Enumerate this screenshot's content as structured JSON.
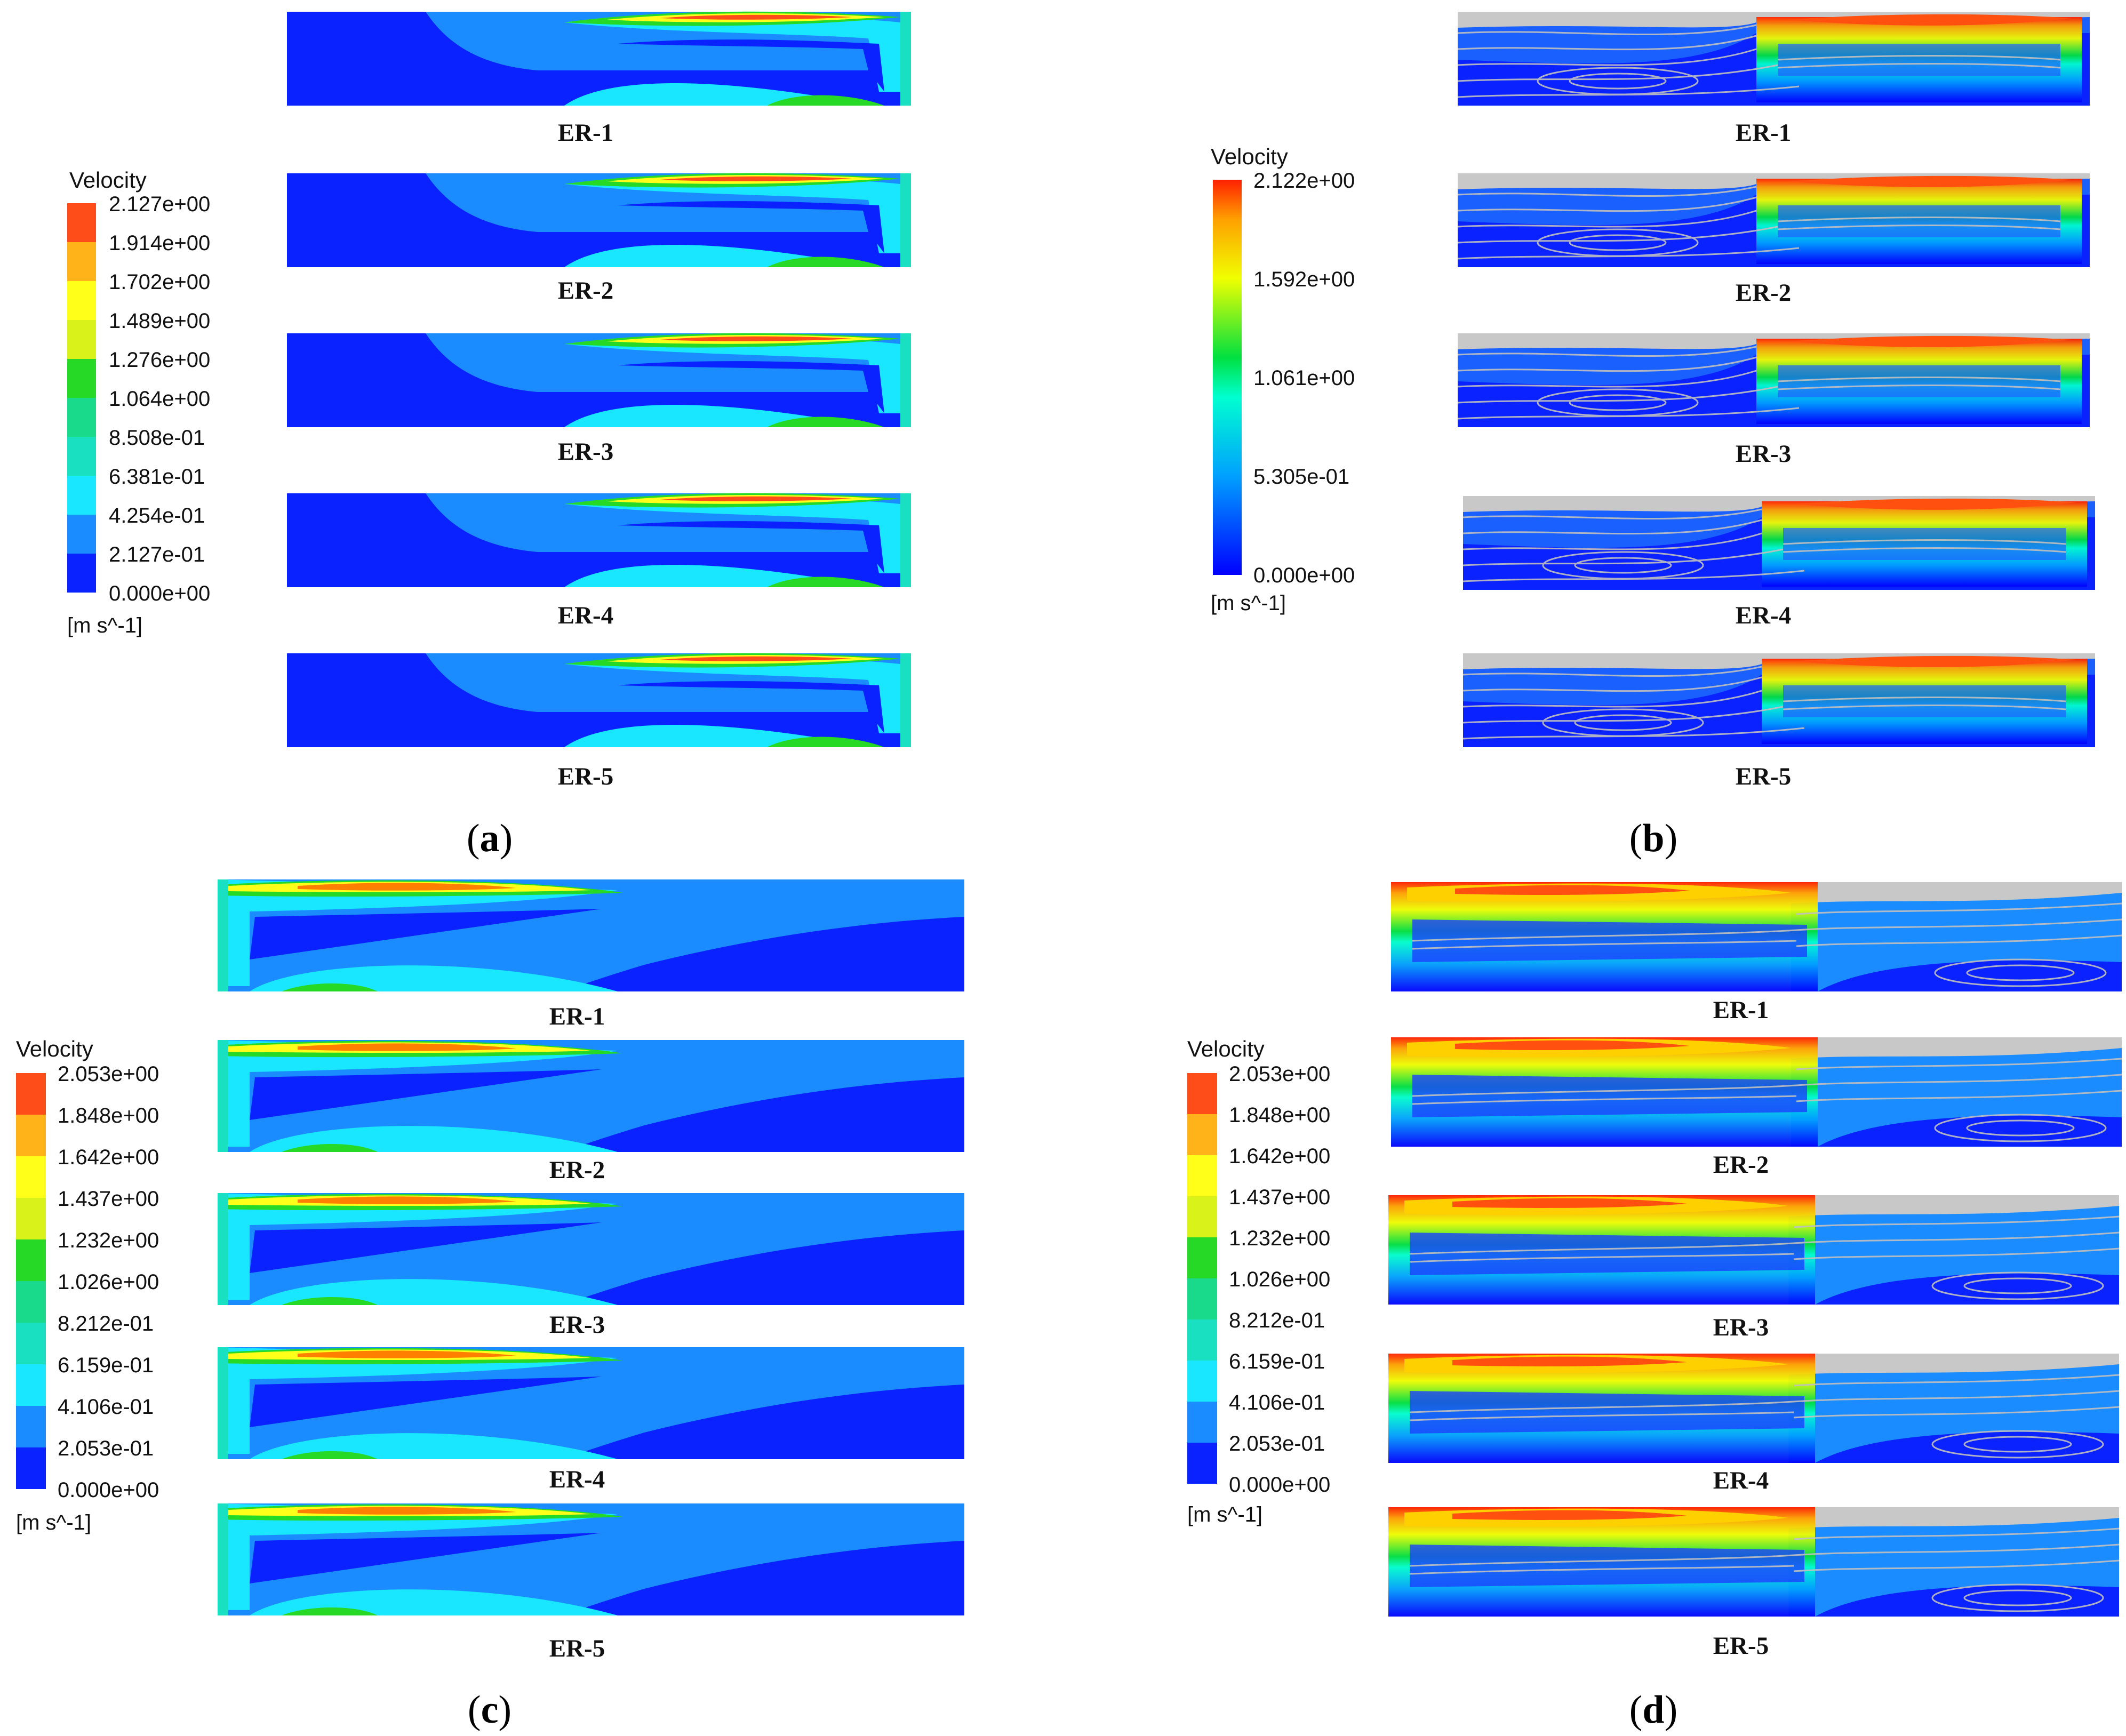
{
  "figure": {
    "panels": [
      {
        "id": "a",
        "caption": "a",
        "type": "contour",
        "legend": {
          "title": "Velocity",
          "unit": "[m s^-1]",
          "ticks": [
            "2.127e+00",
            "1.914e+00",
            "1.702e+00",
            "1.489e+00",
            "1.276e+00",
            "1.064e+00",
            "8.508e-01",
            "6.381e-01",
            "4.254e-01",
            "2.127e-01",
            "0.000e+00"
          ]
        },
        "cases": [
          "ER-1",
          "ER-2",
          "ER-3",
          "ER-4",
          "ER-5"
        ]
      },
      {
        "id": "b",
        "caption": "b",
        "type": "streamline",
        "legend": {
          "title": "Velocity",
          "unit": "[m s^-1]",
          "ticks": [
            "2.122e+00",
            "1.592e+00",
            "1.061e+00",
            "5.305e-01",
            "0.000e+00"
          ]
        },
        "cases": [
          "ER-1",
          "ER-2",
          "ER-3",
          "ER-4",
          "ER-5"
        ]
      },
      {
        "id": "c",
        "caption": "c",
        "type": "contour",
        "legend": {
          "title": "Velocity",
          "unit": "[m s^-1]",
          "ticks": [
            "2.053e+00",
            "1.848e+00",
            "1.642e+00",
            "1.437e+00",
            "1.232e+00",
            "1.026e+00",
            "8.212e-01",
            "6.159e-01",
            "4.106e-01",
            "2.053e-01",
            "0.000e+00"
          ]
        },
        "cases": [
          "ER-1",
          "ER-2",
          "ER-3",
          "ER-4",
          "ER-5"
        ]
      },
      {
        "id": "d",
        "caption": "d",
        "type": "streamline",
        "legend": {
          "title": "Velocity",
          "unit": "[m s^-1]",
          "ticks": [
            "2.053e+00",
            "1.848e+00",
            "1.642e+00",
            "1.437e+00",
            "1.232e+00",
            "1.026e+00",
            "8.212e-01",
            "6.159e-01",
            "4.106e-01",
            "2.053e-01",
            "0.000e+00"
          ]
        },
        "cases": [
          "ER-1",
          "ER-2",
          "ER-3",
          "ER-4",
          "ER-5"
        ]
      }
    ],
    "colors": {
      "band0": "#0a22ff",
      "band1": "#1a8cff",
      "band2": "#19e6ff",
      "band3": "#19e0c0",
      "band4": "#19d98a",
      "band5": "#26d926",
      "band6": "#73e619",
      "band7": "#d9f219",
      "band8": "#ffff1a",
      "band9": "#ffb319",
      "band10": "#ff4d1a",
      "streamline": "#c0c0c0"
    }
  }
}
